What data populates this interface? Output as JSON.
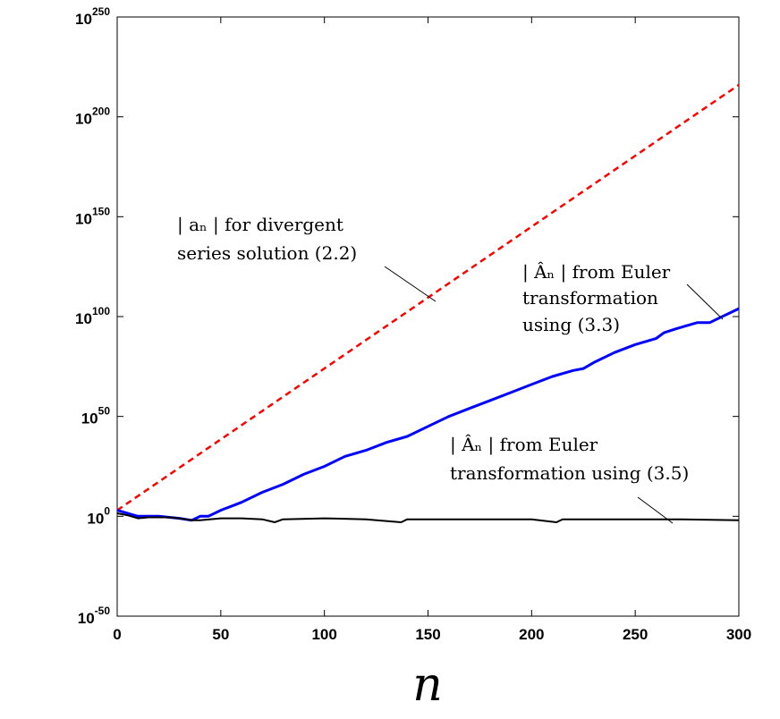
{
  "chart_data": {
    "type": "line",
    "title": "",
    "xlabel": "n",
    "ylabel": "",
    "yscale": "log10",
    "xlim": [
      0,
      300
    ],
    "ylim_exp": [
      -50,
      250
    ],
    "x_ticks": [
      "0",
      "50",
      "100",
      "150",
      "200",
      "250",
      "300"
    ],
    "y_ticks": [
      {
        "base": "10",
        "exp": "-50",
        "value": -50
      },
      {
        "base": "10",
        "exp": "0",
        "value": 0
      },
      {
        "base": "10",
        "exp": "50",
        "value": 50
      },
      {
        "base": "10",
        "exp": "100",
        "value": 100
      },
      {
        "base": "10",
        "exp": "150",
        "value": 150
      },
      {
        "base": "10",
        "exp": "200",
        "value": 200
      },
      {
        "base": "10",
        "exp": "250",
        "value": 250
      }
    ],
    "series": [
      {
        "name": "divergent",
        "color": "#ff0000",
        "style": "dashed",
        "x": [
          0,
          300
        ],
        "log10_y": [
          3,
          216
        ]
      },
      {
        "name": "euler_3_3",
        "color": "#0000ff",
        "style": "solid",
        "x": [
          0,
          10,
          20,
          30,
          36,
          40,
          44,
          50,
          60,
          70,
          80,
          90,
          100,
          110,
          120,
          130,
          140,
          150,
          160,
          170,
          180,
          190,
          200,
          210,
          220,
          225,
          230,
          240,
          250,
          260,
          264,
          270,
          280,
          286,
          290,
          300
        ],
        "log10_y": [
          3,
          0,
          0,
          -1,
          -2,
          0,
          0,
          3,
          7,
          12,
          16,
          21,
          25,
          30,
          33,
          37,
          40,
          45,
          50,
          54,
          58,
          62,
          66,
          70,
          73,
          74,
          77,
          82,
          86,
          89,
          92,
          94,
          97,
          97,
          99,
          104
        ]
      },
      {
        "name": "euler_3_5",
        "color": "#000000",
        "style": "solid",
        "x": [
          0,
          5,
          10,
          15,
          25,
          30,
          36,
          40,
          50,
          60,
          70,
          76,
          80,
          100,
          120,
          137,
          140,
          160,
          180,
          200,
          212,
          215,
          240,
          270,
          300
        ],
        "log10_y": [
          1.5,
          0.5,
          -1,
          -0.5,
          -0.5,
          -1,
          -2,
          -2,
          -1,
          -1,
          -1.5,
          -3,
          -1.5,
          -1,
          -1.5,
          -3,
          -1.5,
          -1.5,
          -1.5,
          -1.5,
          -3,
          -1.5,
          -1.5,
          -1.5,
          -2
        ]
      }
    ],
    "annotations": [
      {
        "lines": [
          "| aₙ | for divergent",
          "series solution (2.2)"
        ]
      },
      {
        "lines": [
          "| Âₙ | from Euler",
          "transformation",
          "using (3.3)"
        ]
      },
      {
        "lines": [
          "| Âₙ | from Euler",
          "transformation using (3.5)"
        ]
      }
    ]
  }
}
